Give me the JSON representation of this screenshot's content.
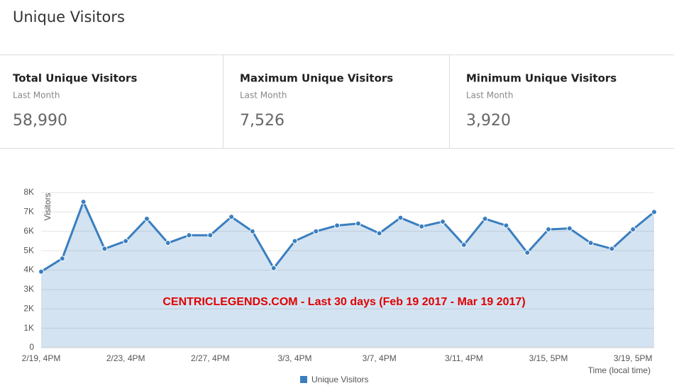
{
  "header": {
    "title": "Unique Visitors"
  },
  "stats": [
    {
      "title": "Total Unique Visitors",
      "period": "Last Month",
      "value": "58,990"
    },
    {
      "title": "Maximum Unique Visitors",
      "period": "Last Month",
      "value": "7,526"
    },
    {
      "title": "Minimum Unique Visitors",
      "period": "Last Month",
      "value": "3,920"
    }
  ],
  "chart_data": {
    "type": "line",
    "y_label": "Visitors",
    "x_label": "Time (local time)",
    "annotation": "CENTRICLEGENDS.COM - Last 30 days (Feb 19 2017 - Mar 19 2017)",
    "categories": [
      "2/19, 4PM",
      null,
      null,
      null,
      "2/23, 4PM",
      null,
      null,
      null,
      "2/27, 4PM",
      null,
      null,
      null,
      "3/3, 4PM",
      null,
      null,
      null,
      "3/7, 4PM",
      null,
      null,
      null,
      "3/11, 4PM",
      null,
      null,
      null,
      "3/15, 5PM",
      null,
      null,
      null,
      "3/19, 5PM",
      null
    ],
    "series": [
      {
        "name": "Unique Visitors",
        "color": "#3a7ebf",
        "values": [
          3920,
          4600,
          7526,
          5100,
          5500,
          6650,
          5400,
          5800,
          5800,
          6750,
          6000,
          4100,
          5500,
          6000,
          6300,
          6400,
          5900,
          6700,
          6250,
          6500,
          5300,
          6650,
          6300,
          4900,
          6100,
          6150,
          5400,
          5100,
          6100,
          7000
        ]
      }
    ],
    "ylim": [
      0,
      8000
    ],
    "yticks": [
      0,
      {
        "value": 1000,
        "label": "1K"
      },
      {
        "value": 2000,
        "label": "2K"
      },
      {
        "value": 3000,
        "label": "3K"
      },
      {
        "value": 4000,
        "label": "4K"
      },
      {
        "value": 5000,
        "label": "5K"
      },
      {
        "value": 6000,
        "label": "6K"
      },
      {
        "value": 7000,
        "label": "7K"
      },
      {
        "value": 8000,
        "label": "8K"
      }
    ],
    "grid": true,
    "area": true,
    "legend": "bottom"
  }
}
